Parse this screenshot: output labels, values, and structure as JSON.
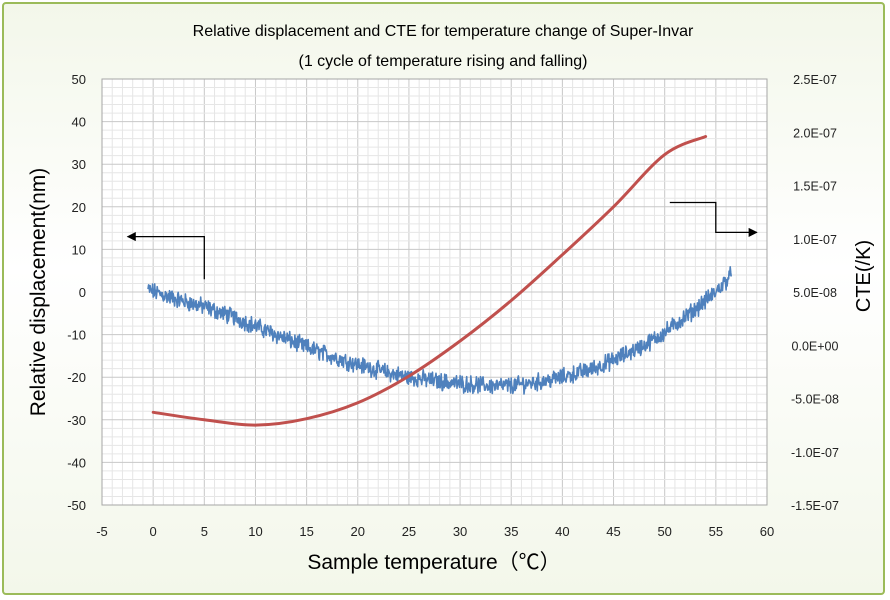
{
  "chart_data": {
    "type": "line",
    "title": "Relative displacement and CTE for temperature change of Super-Invar",
    "subtitle": "(1 cycle of temperature rising and falling)",
    "xlabel": "Sample temperature（℃）",
    "ylabel": "Relative displacement(nm)",
    "y2label": "CTE(/K)",
    "xlim": [
      -5,
      60
    ],
    "ylim": [
      -50,
      50
    ],
    "y2lim": [
      -1.5e-07,
      2.5e-07
    ],
    "x_ticks": [
      "-5",
      "0",
      "5",
      "10",
      "15",
      "20",
      "25",
      "30",
      "35",
      "40",
      "45",
      "50",
      "55",
      "60"
    ],
    "y_ticks": [
      "50",
      "40",
      "30",
      "20",
      "10",
      "0",
      "-10",
      "-20",
      "-30",
      "-40",
      "-50"
    ],
    "y2_ticks": [
      "2.5E-07",
      "2.0E-07",
      "1.5E-07",
      "1.0E-07",
      "5.0E-08",
      "0.0E+00",
      "-5.0E-08",
      "-1.0E-07",
      "-1.5E-07"
    ],
    "grid": true,
    "series": [
      {
        "axis": "left",
        "color": "#4f81bd",
        "style": "noisy",
        "x": [
          -0.5,
          2,
          5,
          8,
          10,
          13,
          15,
          18,
          20,
          23,
          25,
          28,
          30,
          33,
          35,
          38,
          40,
          43,
          45,
          48,
          50,
          53,
          55,
          56.5
        ],
        "y": [
          0.5,
          -1.5,
          -3.5,
          -6,
          -8,
          -11,
          -13,
          -15.5,
          -17,
          -19,
          -20,
          -21,
          -21.5,
          -22,
          -22,
          -21,
          -20,
          -18,
          -16,
          -12.5,
          -9.5,
          -4,
          0,
          4
        ]
      },
      {
        "axis": "right",
        "color": "#c0504d",
        "style": "smooth",
        "x": [
          0,
          5,
          10,
          15,
          20,
          25,
          30,
          35,
          40,
          45,
          50,
          54
        ],
        "y": [
          -6.3e-08,
          -7e-08,
          -7.5e-08,
          -6.9e-08,
          -5.4e-08,
          -2.9e-08,
          4e-09,
          4.2e-08,
          8.5e-08,
          1.3e-07,
          1.79e-07,
          1.96e-07
        ]
      }
    ],
    "annotations": [
      {
        "type": "arrow-left",
        "points": [
          [
            5,
            3
          ],
          [
            5,
            13
          ],
          [
            -2.5,
            13
          ]
        ]
      },
      {
        "type": "arrow-right",
        "points": [
          [
            50.5,
            21
          ],
          [
            55,
            21
          ],
          [
            55,
            14
          ],
          [
            59,
            14
          ]
        ]
      }
    ]
  }
}
